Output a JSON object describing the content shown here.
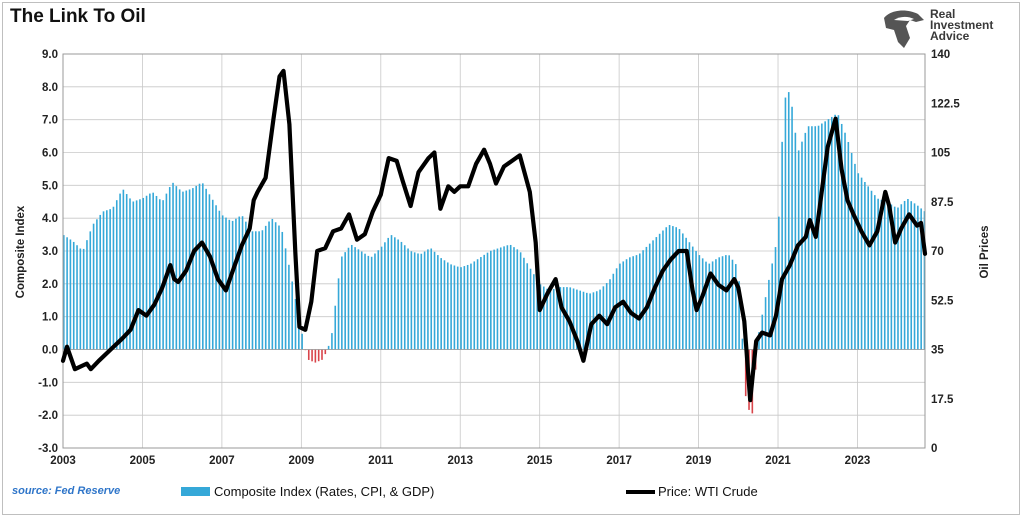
{
  "title": "The Link To Oil",
  "logo": {
    "lines": [
      "Real",
      "Investment",
      "Advice"
    ],
    "icon": "eagle-head-logo"
  },
  "source": "source: Fed Reserve",
  "colors": {
    "bars_positive": "#35a8d8",
    "bars_negative": "#d9444a",
    "line": "#000000",
    "grid": "#c8c8c8"
  },
  "chart_data": {
    "type": "bar",
    "title": "The Link To Oil",
    "ylabel_left": "Composite Index",
    "ylabel_right": "Oil Prices",
    "ylim_left": [
      -3.0,
      9.0
    ],
    "ylim_right": [
      0,
      140
    ],
    "yticks_left": [
      "9.0",
      "8.0",
      "7.0",
      "6.0",
      "5.0",
      "4.0",
      "3.0",
      "2.0",
      "1.0",
      "0.0",
      "-1.0",
      "-2.0",
      "-3.0"
    ],
    "yticks_right": [
      "140",
      "122.5",
      "105",
      "87.5",
      "70",
      "52.5",
      "35",
      "17.5",
      "0"
    ],
    "xticks": [
      "2003",
      "2005",
      "2007",
      "2009",
      "2011",
      "2013",
      "2015",
      "2017",
      "2019",
      "2021",
      "2023"
    ],
    "x_range": [
      2003.0,
      2024.7
    ],
    "grid": true,
    "legend_position": "bottom",
    "series": [
      {
        "name": "Composite Index (Rates, CPI, & GDP)",
        "type": "bar",
        "axis": "left",
        "points": [
          [
            2003.0,
            3.5
          ],
          [
            2003.25,
            3.3
          ],
          [
            2003.5,
            3.0
          ],
          [
            2003.75,
            3.8
          ],
          [
            2004.0,
            4.2
          ],
          [
            2004.25,
            4.3
          ],
          [
            2004.5,
            4.9
          ],
          [
            2004.75,
            4.5
          ],
          [
            2005.0,
            4.6
          ],
          [
            2005.25,
            4.8
          ],
          [
            2005.5,
            4.5
          ],
          [
            2005.75,
            5.1
          ],
          [
            2006.0,
            4.8
          ],
          [
            2006.25,
            4.9
          ],
          [
            2006.5,
            5.1
          ],
          [
            2006.75,
            4.6
          ],
          [
            2007.0,
            4.1
          ],
          [
            2007.25,
            3.9
          ],
          [
            2007.5,
            4.1
          ],
          [
            2007.75,
            3.6
          ],
          [
            2008.0,
            3.6
          ],
          [
            2008.25,
            4.0
          ],
          [
            2008.5,
            3.7
          ],
          [
            2008.75,
            2.2
          ],
          [
            2009.0,
            0.6
          ],
          [
            2009.15,
            -0.3
          ],
          [
            2009.35,
            -0.4
          ],
          [
            2009.55,
            -0.3
          ],
          [
            2009.75,
            0.3
          ],
          [
            2010.0,
            2.8
          ],
          [
            2010.25,
            3.2
          ],
          [
            2010.5,
            3.0
          ],
          [
            2010.75,
            2.8
          ],
          [
            2011.0,
            3.1
          ],
          [
            2011.25,
            3.5
          ],
          [
            2011.5,
            3.3
          ],
          [
            2011.75,
            3.0
          ],
          [
            2012.0,
            2.9
          ],
          [
            2012.25,
            3.1
          ],
          [
            2012.5,
            2.8
          ],
          [
            2012.75,
            2.6
          ],
          [
            2013.0,
            2.5
          ],
          [
            2013.25,
            2.6
          ],
          [
            2013.5,
            2.8
          ],
          [
            2013.75,
            3.0
          ],
          [
            2014.0,
            3.1
          ],
          [
            2014.25,
            3.2
          ],
          [
            2014.5,
            3.0
          ],
          [
            2014.75,
            2.5
          ],
          [
            2015.0,
            2.0
          ],
          [
            2015.25,
            1.8
          ],
          [
            2015.5,
            1.9
          ],
          [
            2015.75,
            1.9
          ],
          [
            2016.0,
            1.8
          ],
          [
            2016.25,
            1.7
          ],
          [
            2016.5,
            1.8
          ],
          [
            2016.75,
            2.1
          ],
          [
            2017.0,
            2.6
          ],
          [
            2017.25,
            2.8
          ],
          [
            2017.5,
            2.9
          ],
          [
            2017.75,
            3.2
          ],
          [
            2018.0,
            3.5
          ],
          [
            2018.25,
            3.8
          ],
          [
            2018.5,
            3.7
          ],
          [
            2018.75,
            3.3
          ],
          [
            2019.0,
            2.9
          ],
          [
            2019.25,
            2.6
          ],
          [
            2019.5,
            2.8
          ],
          [
            2019.75,
            2.9
          ],
          [
            2020.0,
            2.5
          ],
          [
            2020.2,
            -1.7
          ],
          [
            2020.35,
            -2.0
          ],
          [
            2020.5,
            0.4
          ],
          [
            2020.75,
            2.0
          ],
          [
            2021.0,
            3.5
          ],
          [
            2021.15,
            7.6
          ],
          [
            2021.3,
            7.9
          ],
          [
            2021.5,
            6.0
          ],
          [
            2021.75,
            6.8
          ],
          [
            2022.0,
            6.8
          ],
          [
            2022.25,
            7.0
          ],
          [
            2022.5,
            7.2
          ],
          [
            2022.75,
            6.4
          ],
          [
            2023.0,
            5.4
          ],
          [
            2023.25,
            5.0
          ],
          [
            2023.5,
            4.6
          ],
          [
            2023.75,
            4.5
          ],
          [
            2024.0,
            4.3
          ],
          [
            2024.25,
            4.6
          ],
          [
            2024.5,
            4.4
          ],
          [
            2024.7,
            4.2
          ]
        ]
      },
      {
        "name": "Price: WTI Crude",
        "type": "line",
        "axis": "right",
        "points": [
          [
            2003.0,
            31
          ],
          [
            2003.1,
            36
          ],
          [
            2003.3,
            28
          ],
          [
            2003.6,
            30
          ],
          [
            2003.7,
            28
          ],
          [
            2003.9,
            31
          ],
          [
            2004.2,
            35
          ],
          [
            2004.5,
            39
          ],
          [
            2004.7,
            42
          ],
          [
            2004.9,
            49
          ],
          [
            2005.1,
            47
          ],
          [
            2005.3,
            51
          ],
          [
            2005.5,
            57
          ],
          [
            2005.7,
            65
          ],
          [
            2005.8,
            60
          ],
          [
            2005.9,
            59
          ],
          [
            2006.1,
            63
          ],
          [
            2006.3,
            70
          ],
          [
            2006.5,
            73
          ],
          [
            2006.7,
            68
          ],
          [
            2006.9,
            60
          ],
          [
            2007.1,
            56
          ],
          [
            2007.3,
            64
          ],
          [
            2007.5,
            72
          ],
          [
            2007.7,
            78
          ],
          [
            2007.8,
            88
          ],
          [
            2007.9,
            91
          ],
          [
            2008.1,
            96
          ],
          [
            2008.3,
            117
          ],
          [
            2008.45,
            132
          ],
          [
            2008.55,
            134
          ],
          [
            2008.7,
            115
          ],
          [
            2008.85,
            69
          ],
          [
            2008.95,
            43
          ],
          [
            2009.1,
            42
          ],
          [
            2009.25,
            52
          ],
          [
            2009.4,
            70
          ],
          [
            2009.6,
            71
          ],
          [
            2009.8,
            77
          ],
          [
            2010.0,
            78
          ],
          [
            2010.2,
            83
          ],
          [
            2010.4,
            74
          ],
          [
            2010.6,
            76
          ],
          [
            2010.8,
            84
          ],
          [
            2011.0,
            90
          ],
          [
            2011.2,
            103
          ],
          [
            2011.4,
            102
          ],
          [
            2011.55,
            95
          ],
          [
            2011.75,
            86
          ],
          [
            2011.95,
            98
          ],
          [
            2012.2,
            103
          ],
          [
            2012.35,
            105
          ],
          [
            2012.5,
            85
          ],
          [
            2012.7,
            93
          ],
          [
            2012.85,
            91
          ],
          [
            2013.0,
            93
          ],
          [
            2013.2,
            93
          ],
          [
            2013.4,
            101
          ],
          [
            2013.6,
            106
          ],
          [
            2013.75,
            101
          ],
          [
            2013.9,
            94
          ],
          [
            2014.1,
            100
          ],
          [
            2014.3,
            102
          ],
          [
            2014.5,
            104
          ],
          [
            2014.75,
            91
          ],
          [
            2014.9,
            73
          ],
          [
            2015.0,
            49
          ],
          [
            2015.2,
            55
          ],
          [
            2015.4,
            60
          ],
          [
            2015.55,
            50
          ],
          [
            2015.75,
            45
          ],
          [
            2015.95,
            38
          ],
          [
            2016.1,
            31
          ],
          [
            2016.3,
            44
          ],
          [
            2016.5,
            47
          ],
          [
            2016.7,
            44
          ],
          [
            2016.9,
            50
          ],
          [
            2017.1,
            52
          ],
          [
            2017.3,
            48
          ],
          [
            2017.5,
            46
          ],
          [
            2017.7,
            50
          ],
          [
            2017.9,
            57
          ],
          [
            2018.1,
            63
          ],
          [
            2018.3,
            67
          ],
          [
            2018.5,
            70
          ],
          [
            2018.7,
            70
          ],
          [
            2018.85,
            56
          ],
          [
            2018.95,
            49
          ],
          [
            2019.1,
            54
          ],
          [
            2019.3,
            62
          ],
          [
            2019.5,
            58
          ],
          [
            2019.7,
            56
          ],
          [
            2019.9,
            60
          ],
          [
            2020.0,
            57
          ],
          [
            2020.15,
            45
          ],
          [
            2020.3,
            17
          ],
          [
            2020.45,
            38
          ],
          [
            2020.6,
            41
          ],
          [
            2020.8,
            40
          ],
          [
            2020.95,
            47
          ],
          [
            2021.1,
            60
          ],
          [
            2021.3,
            65
          ],
          [
            2021.5,
            72
          ],
          [
            2021.7,
            75
          ],
          [
            2021.8,
            81
          ],
          [
            2021.95,
            75
          ],
          [
            2022.1,
            91
          ],
          [
            2022.25,
            107
          ],
          [
            2022.45,
            117
          ],
          [
            2022.6,
            99
          ],
          [
            2022.75,
            88
          ],
          [
            2022.9,
            83
          ],
          [
            2023.1,
            77
          ],
          [
            2023.3,
            72
          ],
          [
            2023.5,
            77
          ],
          [
            2023.7,
            91
          ],
          [
            2023.8,
            86
          ],
          [
            2023.95,
            73
          ],
          [
            2024.1,
            78
          ],
          [
            2024.3,
            83
          ],
          [
            2024.5,
            79
          ],
          [
            2024.6,
            80
          ],
          [
            2024.7,
            69
          ]
        ]
      }
    ]
  }
}
